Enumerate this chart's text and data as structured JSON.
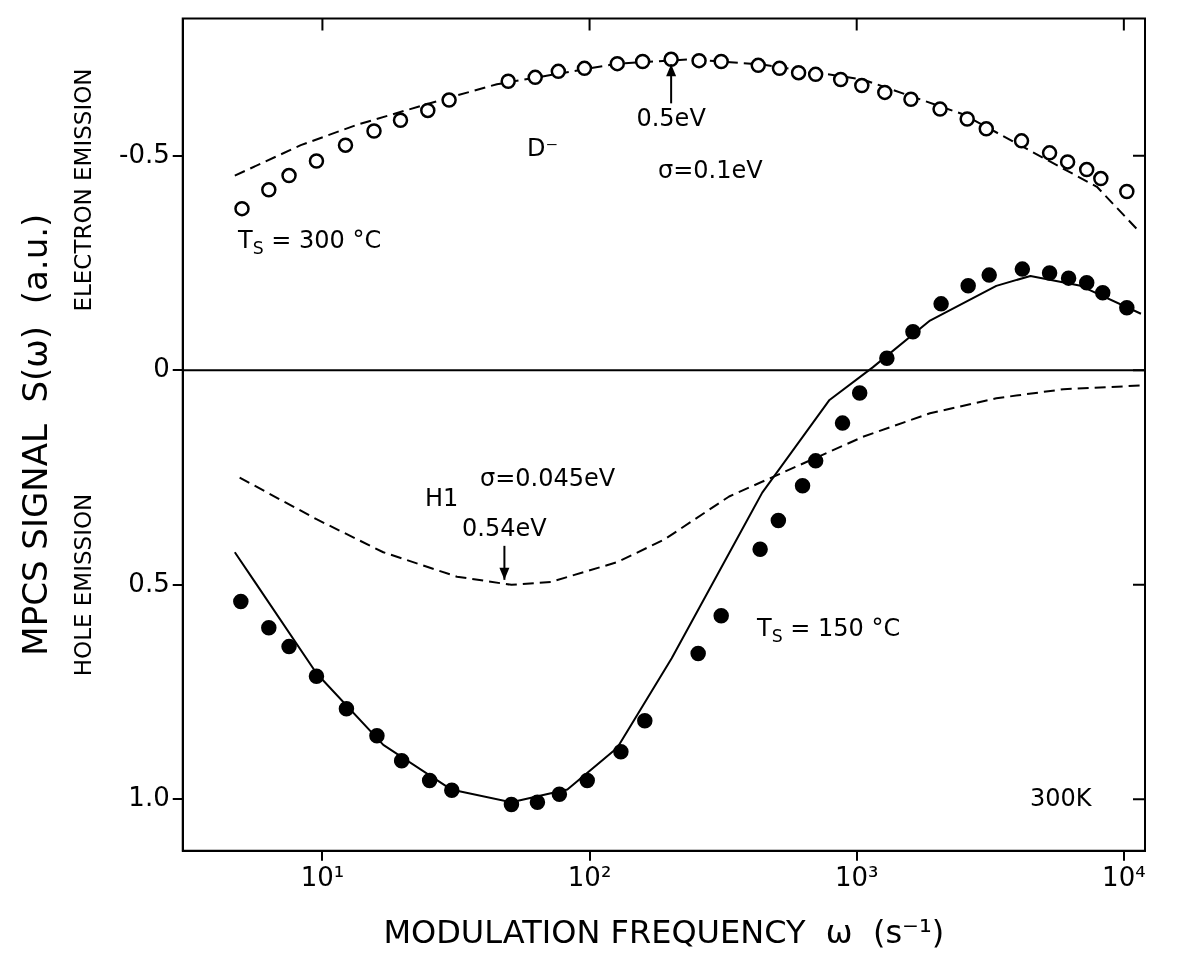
{
  "chart_data": {
    "type": "scatter",
    "xlabel": "MODULATION FREQUENCY  ω  (s⁻¹)",
    "ylabel": "MPCS SIGNAL  S(ω)  (a.u.)",
    "log": "x",
    "grid": false,
    "legend": false,
    "xlim": [
      3,
      12000
    ],
    "xticks": [
      {
        "value": 10,
        "label": "10¹"
      },
      {
        "value": 100,
        "label": "10²"
      },
      {
        "value": 1000,
        "label": "10³"
      },
      {
        "value": 10000,
        "label": "10⁴"
      }
    ],
    "ylim": [
      1.12,
      -0.82
    ],
    "yticks": [
      {
        "value": -0.5,
        "label": "-0.5"
      },
      0,
      {
        "value": 0.5,
        "label": "0.5"
      },
      {
        "value": 1,
        "label": "1.0"
      }
    ],
    "ref_lines": [
      {
        "axis": "y",
        "value": 0,
        "color": "#000000",
        "line_style": "solid"
      }
    ],
    "series": [
      {
        "type": "scatter",
        "marker": "circle",
        "color": "#ffffff",
        "x": [
          5.0,
          6.3,
          7.5,
          9.5,
          12.2,
          15.6,
          19.6,
          24.8,
          29.8,
          49.6,
          62.6,
          76.4,
          95.7,
          127,
          158,
          202,
          257,
          311,
          428,
          514,
          606,
          702,
          871,
          1045,
          1274,
          1596,
          2051,
          2592,
          3055,
          4140,
          5272,
          6158,
          7261,
          8200,
          10260
        ],
        "values": [
          -0.377,
          -0.421,
          -0.454,
          -0.488,
          -0.525,
          -0.558,
          -0.583,
          -0.606,
          -0.63,
          -0.674,
          -0.683,
          -0.697,
          -0.704,
          -0.715,
          -0.72,
          -0.725,
          -0.722,
          -0.72,
          -0.711,
          -0.704,
          -0.694,
          -0.69,
          -0.678,
          -0.664,
          -0.648,
          -0.632,
          -0.609,
          -0.586,
          -0.563,
          -0.535,
          -0.507,
          -0.486,
          -0.468,
          -0.447,
          -0.417
        ]
      },
      {
        "type": "line",
        "line_style": "dashed",
        "color": "#000000",
        "x": [
          4.7,
          8.3,
          13.4,
          30.3,
          45,
          127,
          241,
          443,
          1055,
          2500,
          5140,
          7930,
          11200
        ],
        "values": [
          -0.454,
          -0.525,
          -0.572,
          -0.637,
          -0.667,
          -0.715,
          -0.725,
          -0.713,
          -0.678,
          -0.597,
          -0.491,
          -0.428,
          -0.329
        ]
      },
      {
        "type": "scatter",
        "marker": "circle",
        "color": "#000000",
        "x": [
          4.95,
          6.3,
          7.5,
          9.5,
          12.3,
          16.0,
          19.8,
          25.2,
          30.5,
          51,
          63.8,
          77.1,
          98,
          131,
          161,
          255,
          311,
          435,
          509,
          627,
          702,
          885,
          1026,
          1297,
          1624,
          2070,
          2614,
          3133,
          4169,
          5272,
          6211,
          7261,
          8337,
          10260
        ],
        "values": [
          0.539,
          0.6,
          0.644,
          0.713,
          0.789,
          0.852,
          0.91,
          0.956,
          0.979,
          1.012,
          1.007,
          0.988,
          0.956,
          0.889,
          0.817,
          0.66,
          0.572,
          0.417,
          0.35,
          0.269,
          0.211,
          0.123,
          0.053,
          -0.028,
          -0.09,
          -0.155,
          -0.197,
          -0.222,
          -0.236,
          -0.227,
          -0.215,
          -0.204,
          -0.181,
          -0.146
        ]
      },
      {
        "type": "line",
        "line_style": "solid",
        "color": "#000000",
        "x": [
          4.7,
          9.5,
          16.9,
          30.3,
          51,
          82.6,
          127,
          203,
          443,
          791,
          1148,
          1881,
          3331,
          4470,
          6890,
          11590
        ],
        "values": [
          0.424,
          0.706,
          0.873,
          0.977,
          1.007,
          0.977,
          0.88,
          0.671,
          0.285,
          0.069,
          -0.007,
          -0.116,
          -0.197,
          -0.22,
          -0.197,
          -0.132
        ]
      },
      {
        "type": "line",
        "line_style": "dashed",
        "color": "#000000",
        "x": [
          4.9,
          9.5,
          16.9,
          31.9,
          51,
          71.9,
          127,
          191,
          333,
          590,
          1055,
          1881,
          3331,
          5940,
          11880
        ],
        "values": [
          0.25,
          0.347,
          0.424,
          0.481,
          0.5,
          0.493,
          0.447,
          0.394,
          0.294,
          0.225,
          0.155,
          0.1,
          0.065,
          0.044,
          0.035
        ]
      }
    ],
    "annotations": [
      "ELECTRON EMISSION",
      "HOLE EMISSION",
      "T$_{S}$ = 300 °C",
      "D⁻",
      {
        "text": "0.5eV",
        "x": 202,
        "y": -0.725
      },
      "σ=0.1eV",
      "H1",
      "σ=0.045eV",
      {
        "text": "0.54eV",
        "x": 48,
        "y": 0.5
      },
      "T$_{S}$ = 150 °C",
      "300K"
    ]
  }
}
